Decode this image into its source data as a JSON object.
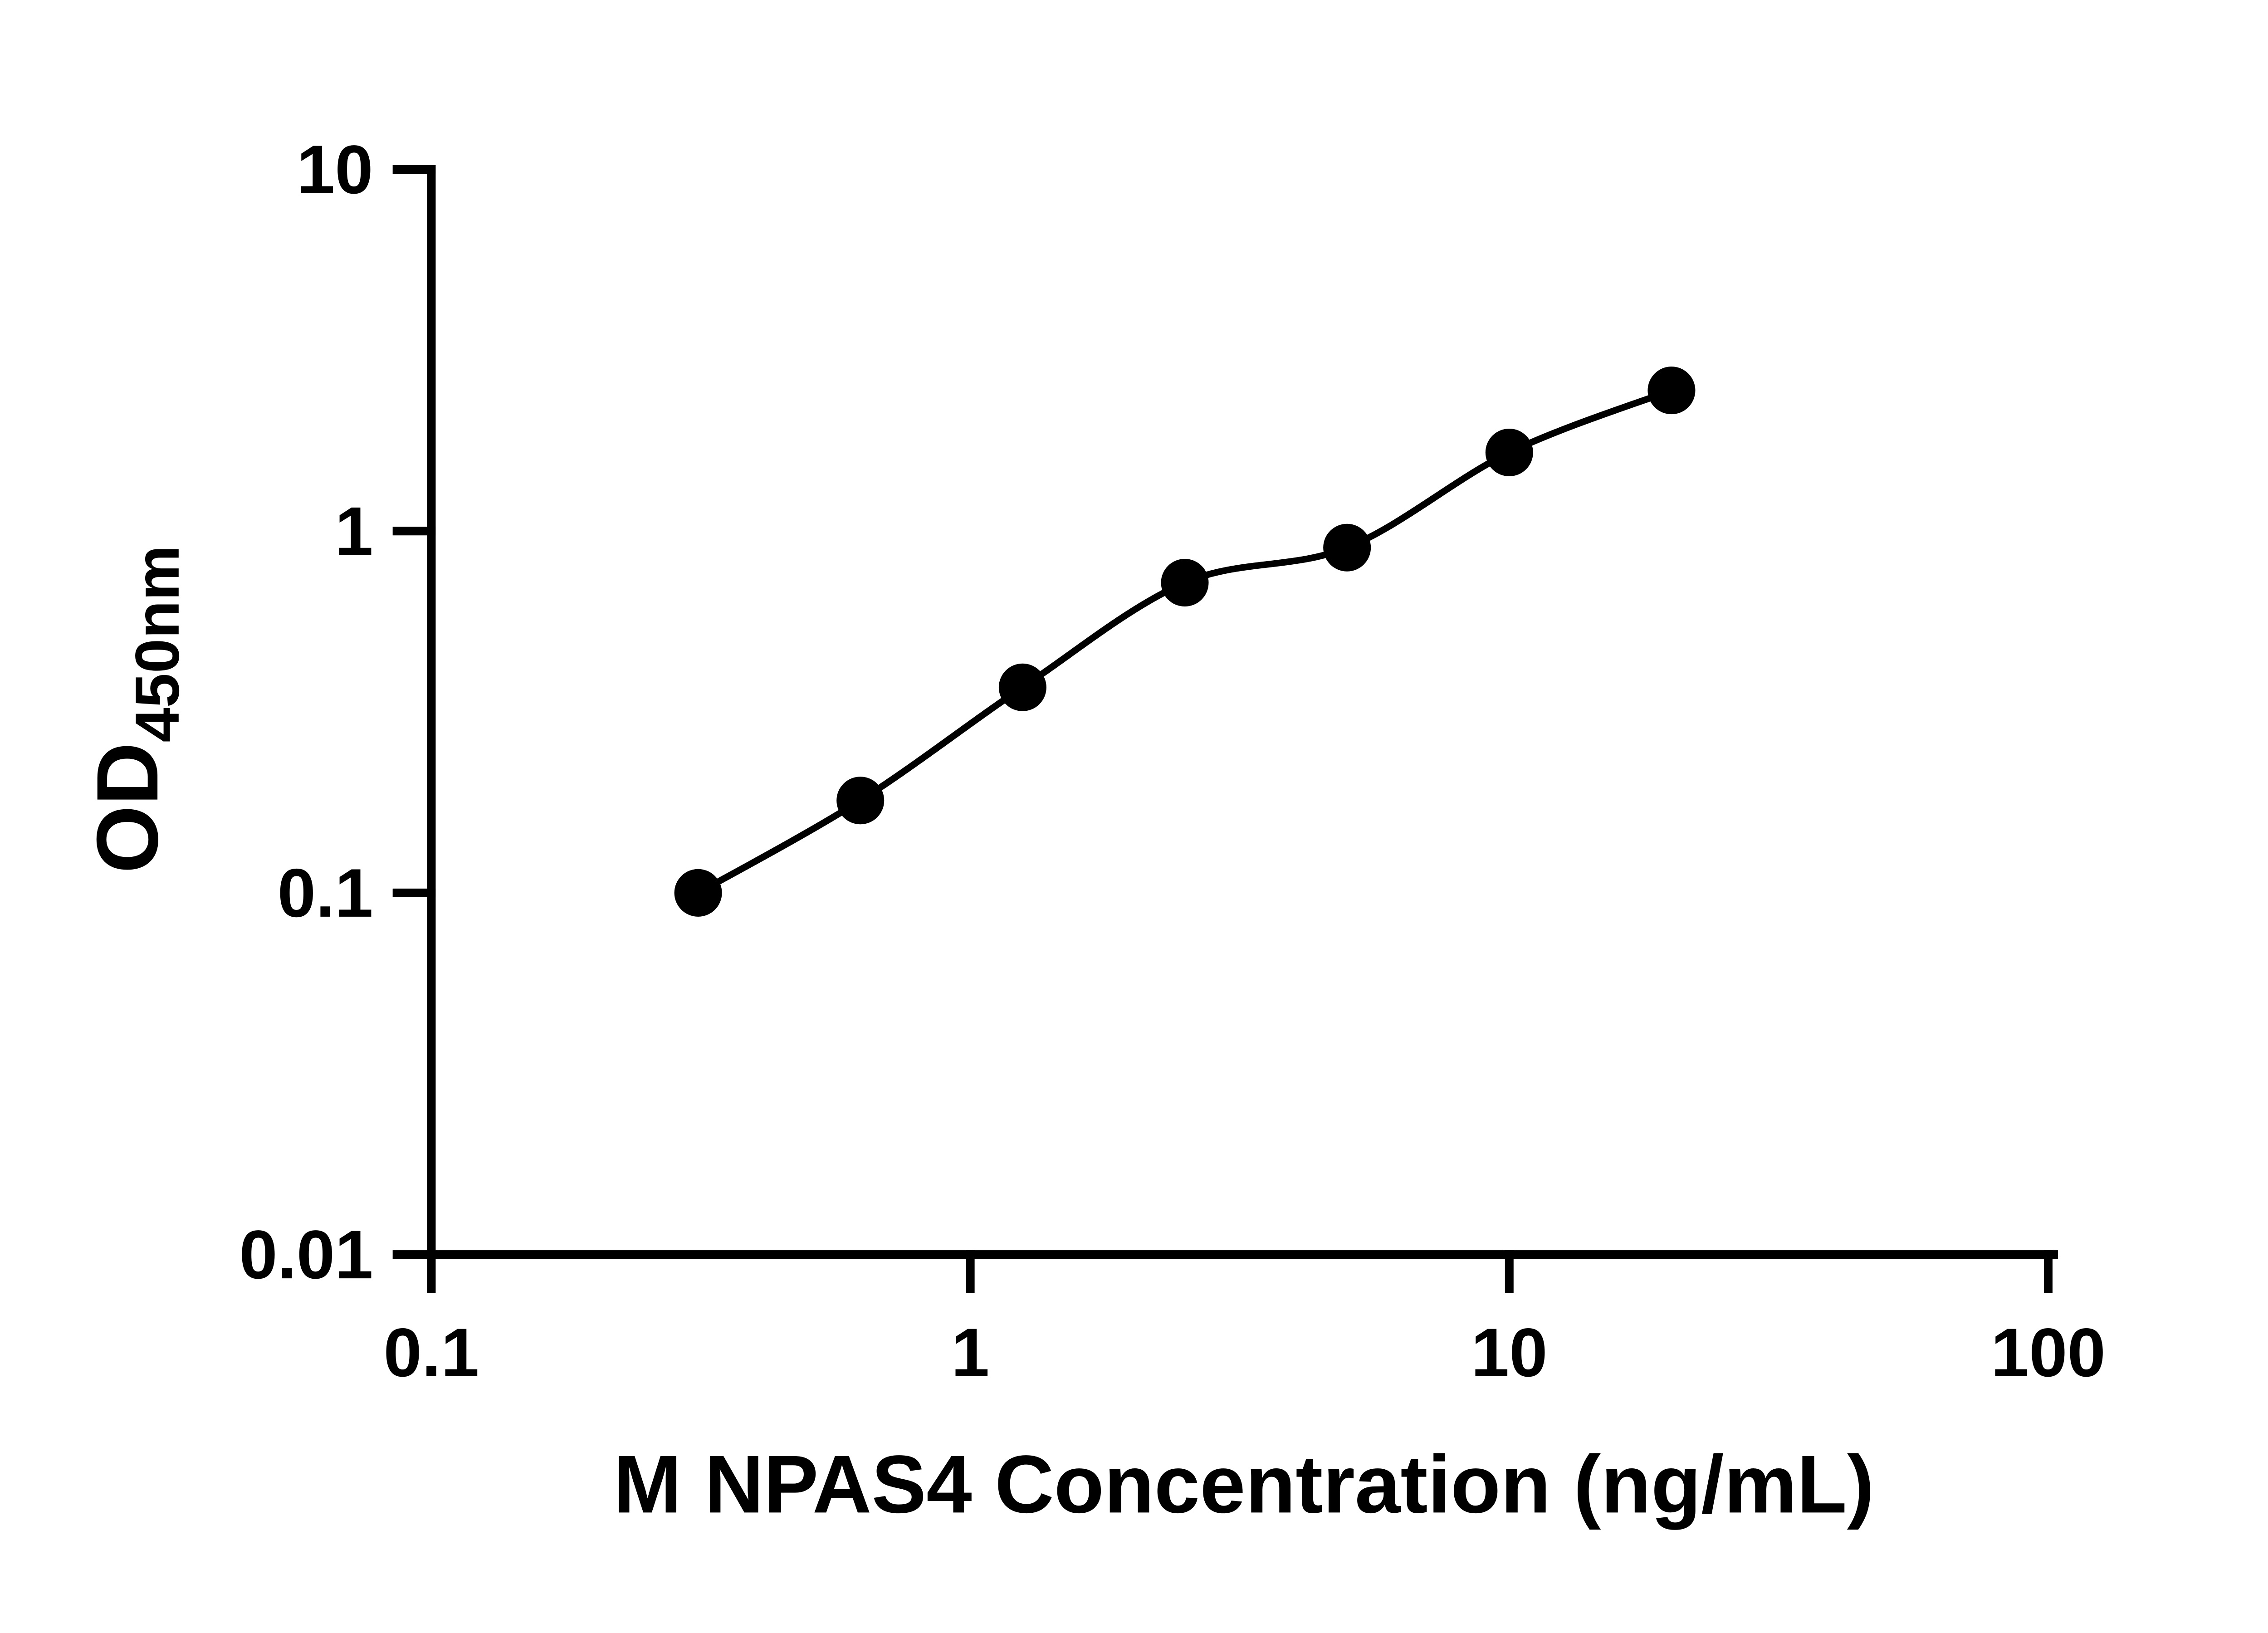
{
  "chart_data": {
    "type": "scatter",
    "subtype": "elisa-standard-curve",
    "title": "",
    "xlabel": "M NPAS4 Concentration (ng/mL)",
    "ylabel_main": "OD",
    "ylabel_sub": "450nm",
    "x_scale": "log10",
    "y_scale": "log10",
    "xlim": [
      0.1,
      100
    ],
    "ylim": [
      0.01,
      10
    ],
    "grid": false,
    "legend": "none",
    "x_ticks": [
      {
        "v": 0.1,
        "label": "0.1"
      },
      {
        "v": 1,
        "label": "1"
      },
      {
        "v": 10,
        "label": "10"
      },
      {
        "v": 100,
        "label": "100"
      }
    ],
    "y_ticks": [
      {
        "v": 0.01,
        "label": "0.01"
      },
      {
        "v": 0.1,
        "label": "0.1"
      },
      {
        "v": 1,
        "label": "1"
      },
      {
        "v": 10,
        "label": "10"
      }
    ],
    "series": [
      {
        "marker": "filled-circle",
        "color": "#000000",
        "line": "smooth-fit",
        "points": [
          {
            "x": 0.3125,
            "y": 0.1
          },
          {
            "x": 0.625,
            "y": 0.18
          },
          {
            "x": 1.25,
            "y": 0.37
          },
          {
            "x": 2.5,
            "y": 0.72
          },
          {
            "x": 5,
            "y": 0.9
          },
          {
            "x": 10,
            "y": 1.65
          },
          {
            "x": 20,
            "y": 2.45
          }
        ]
      }
    ]
  },
  "colors": {
    "foreground": "#000000",
    "background": "#ffffff"
  }
}
